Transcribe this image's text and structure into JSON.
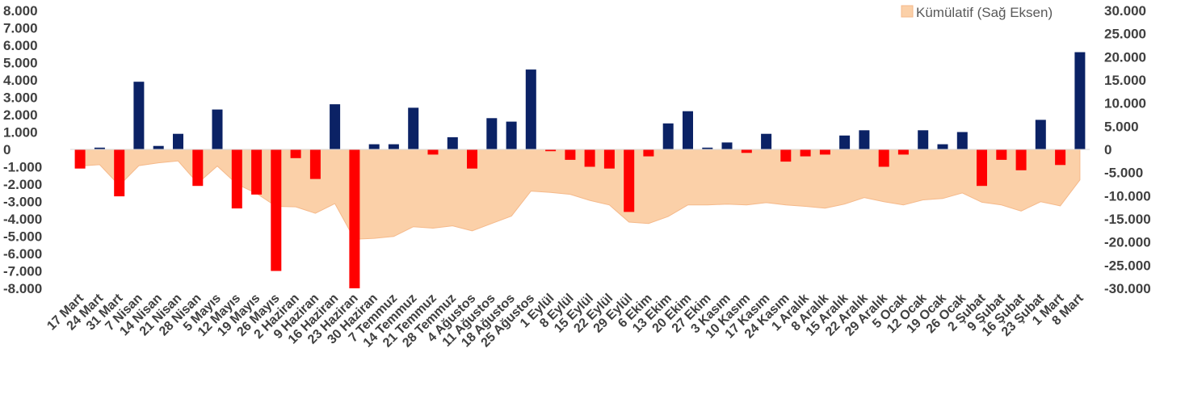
{
  "chart_data": {
    "type": "bar",
    "categories": [
      "17 Mart",
      "24 Mart",
      "31 Mart",
      "7 Nisan",
      "14 Nisan",
      "21 Nisan",
      "28 Nisan",
      "5 Mayıs",
      "12 Mayıs",
      "19 Mayıs",
      "26 Mayıs",
      "2 Haziran",
      "9 Haziran",
      "16 Haziran",
      "23 Haziran",
      "30 Haziran",
      "7 Temmuz",
      "14 Temmuz",
      "21 Temmuz",
      "28 Temmuz",
      "4 Ağustos",
      "11 Ağustos",
      "18 Ağustos",
      "25 Ağustos",
      "1 Eylül",
      "8 Eylül",
      "15 Eylül",
      "22 Eylül",
      "29 Eylül",
      "6 Ekim",
      "13 Ekim",
      "20 Ekim",
      "27 Ekim",
      "3 Kasım",
      "10 Kasım",
      "17 Kasım",
      "24 Kasım",
      "1 Aralık",
      "8 Aralık",
      "15 Aralık",
      "22 Aralık",
      "29 Aralık",
      "5 Ocak",
      "12 Ocak",
      "19 Ocak",
      "26 Ocak",
      "2 Şubat",
      "9 Şubat",
      "16 Şubat",
      "23 Şubat",
      "1 Mart",
      "8 Mart"
    ],
    "series": [
      {
        "axis": "left",
        "type": "bar",
        "values": [
          -1100,
          100,
          -2700,
          3900,
          200,
          900,
          -2100,
          2300,
          -3400,
          -2600,
          -7000,
          -500,
          -1700,
          2600,
          -8000,
          300,
          300,
          2400,
          -300,
          700,
          -1100,
          1800,
          1600,
          4600,
          -100,
          -600,
          -1000,
          -1100,
          -3600,
          -400,
          1500,
          2200,
          100,
          400,
          -200,
          900,
          -700,
          -400,
          -300,
          800,
          1100,
          -1000,
          -300,
          1100,
          300,
          1000,
          -2100,
          -600,
          -1200,
          1700,
          -900,
          5600
        ]
      },
      {
        "name": "Kümülatif (Sağ Eksen)",
        "axis": "right",
        "type": "area",
        "values": [
          -3600,
          -3300,
          -7800,
          -3500,
          -2900,
          -2500,
          -7300,
          -3600,
          -7500,
          -9500,
          -12300,
          -12400,
          -13800,
          -11700,
          -19400,
          -19200,
          -18800,
          -16700,
          -17000,
          -16500,
          -17600,
          -16000,
          -14400,
          -9000,
          -9300,
          -9700,
          -11000,
          -12000,
          -15700,
          -16000,
          -14500,
          -12000,
          -12000,
          -11800,
          -12000,
          -11500,
          -12000,
          -12300,
          -12700,
          -11800,
          -10400,
          -11300,
          -12000,
          -10900,
          -10600,
          -9400,
          -11400,
          -12000,
          -13300,
          -11300,
          -12200,
          -6600
        ]
      }
    ],
    "y_left": {
      "min": -8000,
      "max": 8000,
      "step": 1000,
      "tick_labels": [
        "8.000",
        "7.000",
        "6.000",
        "5.000",
        "4.000",
        "3.000",
        "2.000",
        "1.000",
        "0",
        "-1.000",
        "-2.000",
        "-3.000",
        "-4.000",
        "-5.000",
        "-6.000",
        "-7.000",
        "-8.000"
      ]
    },
    "y_right": {
      "min": -30000,
      "max": 30000,
      "step": 5000,
      "tick_labels": [
        "30.000",
        "25.000",
        "20.000",
        "15.000",
        "10.000",
        "5.000",
        "0",
        "-5.000",
        "-10.000",
        "-15.000",
        "-20.000",
        "-25.000",
        "-30.000"
      ]
    },
    "colors": {
      "positive": "#0b2265",
      "negative": "#ff0000",
      "area_fill": "#fbd0a8",
      "area_line": "#f5b98a",
      "text": "#404040"
    },
    "legend": {
      "position": "top-right",
      "label": "Kümülatif (Sağ Eksen)"
    },
    "grid": false
  }
}
